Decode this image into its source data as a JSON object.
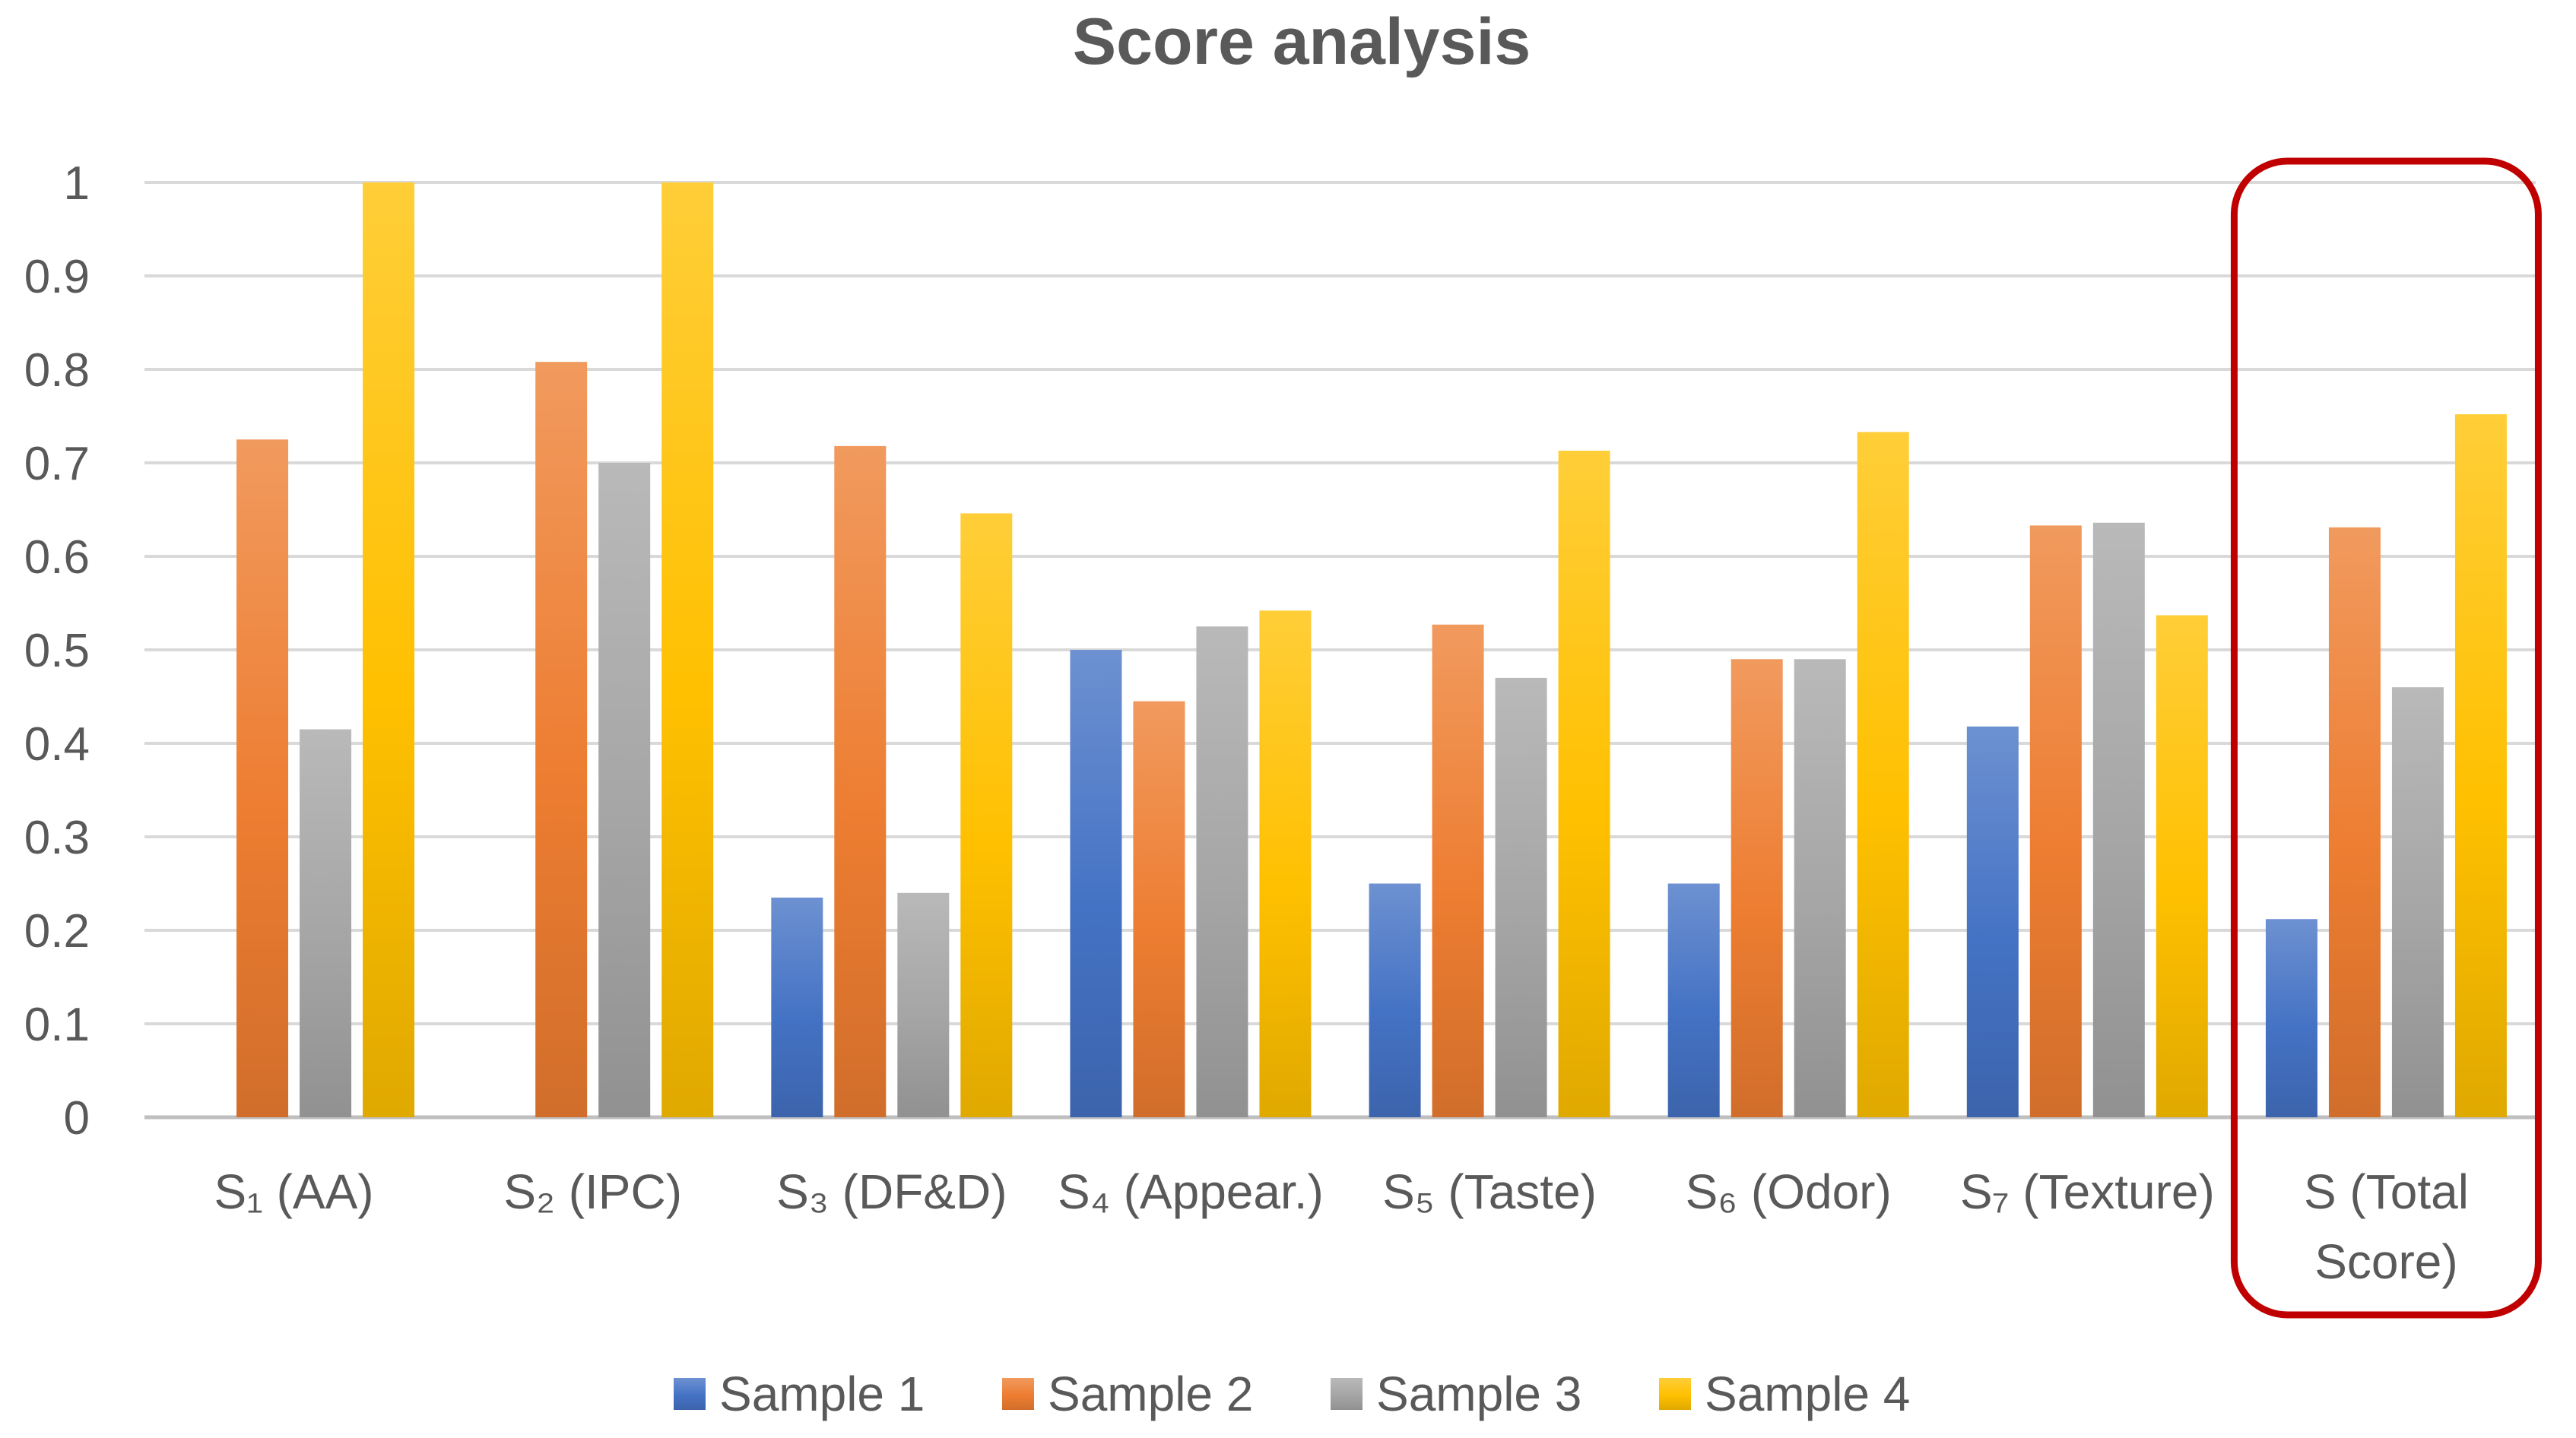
{
  "chart_data": {
    "type": "bar",
    "title": "Score analysis",
    "xlabel": "",
    "ylabel": "",
    "ylim": [
      0,
      1
    ],
    "yticks": [
      "0",
      "0.1",
      "0.2",
      "0.3",
      "0.4",
      "0.5",
      "0.6",
      "0.7",
      "0.8",
      "0.9",
      "1"
    ],
    "grid": true,
    "legend_position": "bottom",
    "categories": [
      [
        "S₁  (AA)"
      ],
      [
        "S₂  (IPC)"
      ],
      [
        "S₃  (DF&D)"
      ],
      [
        "S₄  (Appear.)"
      ],
      [
        "S₅  (Taste)"
      ],
      [
        "S₆ (Odor)"
      ],
      [
        "S₇  (Texture)"
      ],
      [
        "S (Total",
        "Score)"
      ]
    ],
    "series": [
      {
        "name": "Sample 1",
        "color": "#4472C4",
        "values": [
          0,
          0,
          0.235,
          0.5,
          0.25,
          0.25,
          0.418,
          0.212
        ]
      },
      {
        "name": "Sample 2",
        "color": "#ED7D31",
        "values": [
          0.725,
          0.808,
          0.718,
          0.445,
          0.527,
          0.49,
          0.633,
          0.631
        ]
      },
      {
        "name": "Sample 3",
        "color": "#A5A5A5",
        "values": [
          0.415,
          0.7,
          0.24,
          0.525,
          0.47,
          0.49,
          0.636,
          0.46
        ]
      },
      {
        "name": "Sample 4",
        "color": "#FFC000",
        "values": [
          1.0,
          1.0,
          0.646,
          0.542,
          0.713,
          0.733,
          0.537,
          0.752
        ]
      }
    ],
    "annotations": [
      {
        "type": "highlight-box",
        "target_category": "S (Total Score)",
        "color": "#C00000"
      }
    ]
  }
}
